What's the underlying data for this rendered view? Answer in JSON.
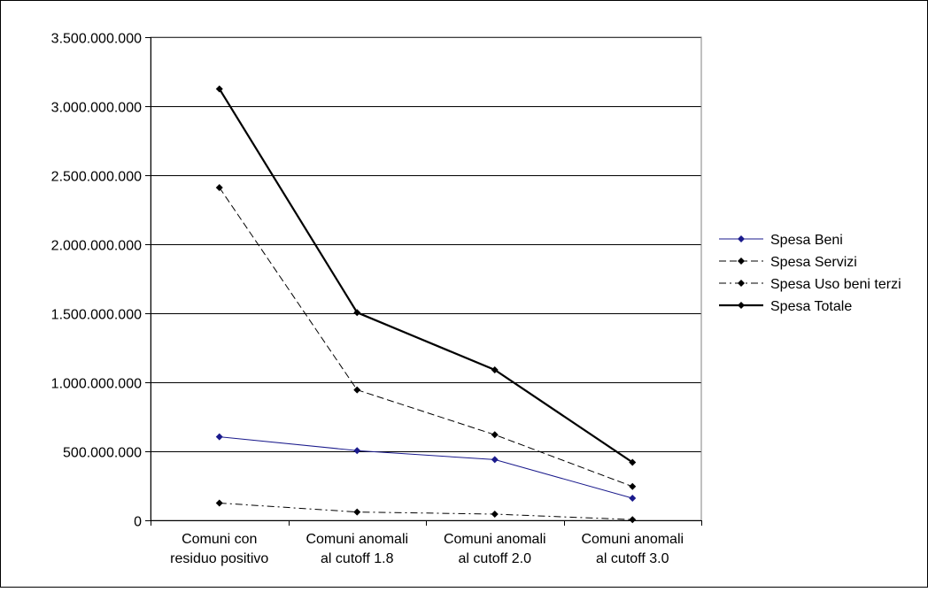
{
  "chart_data": {
    "type": "line",
    "title": "",
    "xlabel": "",
    "ylabel": "",
    "categories": [
      [
        "Comuni con",
        "residuo positivo"
      ],
      [
        "Comuni anomali",
        "al cutoff 1.8"
      ],
      [
        "Comuni anomali",
        "al cutoff 2.0"
      ],
      [
        "Comuni anomali",
        "al cutoff 3.0"
      ]
    ],
    "ylim": [
      0,
      3500000000
    ],
    "yticks": [
      0,
      500000000,
      1000000000,
      1500000000,
      2000000000,
      2500000000,
      3000000000,
      3500000000
    ],
    "ytick_labels": [
      "0",
      "500.000.000",
      "1.000.000.000",
      "1.500.000.000",
      "2.000.000.000",
      "2.500.000.000",
      "3.000.000.000",
      "3.500.000.000"
    ],
    "grid": "horizontal",
    "legend_position": "right",
    "series": [
      {
        "name": "Spesa Beni",
        "values": [
          605000000,
          505000000,
          440000000,
          160000000
        ],
        "color": "#1a1a8c",
        "line_style": "solid",
        "marker_color": "#1a1a8c"
      },
      {
        "name": "Spesa Servizi",
        "values": [
          2410000000,
          945000000,
          620000000,
          245000000
        ],
        "color": "#000000",
        "line_style": "dashed",
        "marker_color": "#000000"
      },
      {
        "name": "Spesa Uso beni terzi",
        "values": [
          125000000,
          60000000,
          45000000,
          5000000
        ],
        "color": "#000000",
        "line_style": "dashdot",
        "marker_color": "#000000"
      },
      {
        "name": "Spesa Totale",
        "values": [
          3125000000,
          1505000000,
          1090000000,
          420000000
        ],
        "color": "#000000",
        "line_style": "bold",
        "marker_color": "#000000"
      }
    ]
  }
}
